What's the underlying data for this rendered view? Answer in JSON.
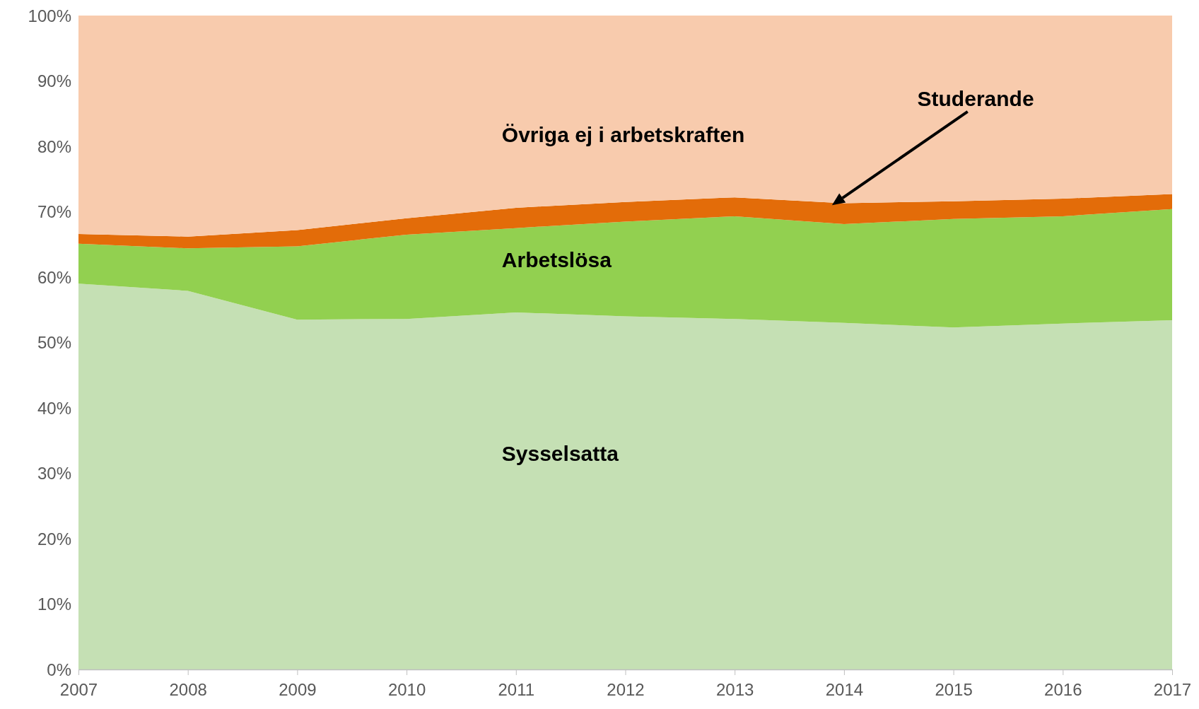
{
  "chart_data": {
    "type": "area",
    "stacked": true,
    "x": [
      2007,
      2008,
      2009,
      2010,
      2011,
      2012,
      2013,
      2014,
      2015,
      2016,
      2017
    ],
    "series": [
      {
        "name": "Sysselsatta",
        "color": "#c5e0b4",
        "values": [
          59.0,
          57.9,
          53.5,
          53.6,
          54.6,
          54.0,
          53.6,
          53.0,
          52.3,
          52.9,
          53.4
        ]
      },
      {
        "name": "Arbetslösa",
        "color": "#92d050",
        "values": [
          6.1,
          6.5,
          11.2,
          12.9,
          12.9,
          14.5,
          15.7,
          15.1,
          16.6,
          16.4,
          17.0
        ]
      },
      {
        "name": "Studerande",
        "color": "#e36c09",
        "values": [
          1.5,
          1.8,
          2.5,
          2.5,
          3.1,
          3.0,
          2.9,
          3.2,
          2.7,
          2.7,
          2.3
        ]
      },
      {
        "name": "Övriga ej i arbetskraften",
        "color": "#f8cbad",
        "values": [
          33.4,
          33.8,
          32.8,
          31.0,
          29.4,
          28.5,
          27.8,
          28.7,
          28.4,
          28.0,
          27.3
        ]
      }
    ],
    "xlim": [
      2007,
      2017
    ],
    "xticks": [
      2007,
      2008,
      2009,
      2010,
      2011,
      2012,
      2013,
      2014,
      2015,
      2016,
      2017
    ],
    "ylim": [
      0,
      100
    ],
    "yticks": [
      {
        "value": 0,
        "label": "0%"
      },
      {
        "value": 10,
        "label": "10%"
      },
      {
        "value": 20,
        "label": "20%"
      },
      {
        "value": 30,
        "label": "30%"
      },
      {
        "value": 40,
        "label": "40%"
      },
      {
        "value": 50,
        "label": "50%"
      },
      {
        "value": 60,
        "label": "60%"
      },
      {
        "value": 70,
        "label": "70%"
      },
      {
        "value": 80,
        "label": "80%"
      },
      {
        "value": 90,
        "label": "90%"
      },
      {
        "value": 100,
        "label": "100%"
      }
    ],
    "legend": false,
    "grid": false
  }
}
